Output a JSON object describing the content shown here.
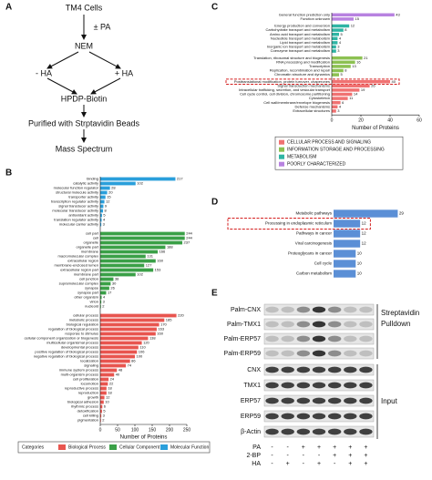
{
  "panel_labels": [
    "A",
    "B",
    "C",
    "D",
    "E"
  ],
  "flowchart": {
    "start": "TM4 Cells",
    "treatment": "± PA",
    "step1": "NEM",
    "left": "- HA",
    "right": "+ HA",
    "step2": "HPDP-Biotin",
    "step3": "Purified with Strptavidin Beads",
    "end": "Mass  Spectrum"
  },
  "chart_data": [
    {
      "type": "bar",
      "orientation": "horizontal",
      "xlabel": "Number of Proteins",
      "xlim": [
        0,
        60
      ],
      "xticks": [
        0,
        20,
        40,
        60
      ],
      "legend": "bottom-right",
      "series": [
        {
          "name": "CELLULAR PROCESS AND SIGNALING",
          "color": "#f07272",
          "highlight": [
            0
          ],
          "categories": [
            "Posttranslational modification, protein turnover, chaperones",
            "Signal transduction mechanisms",
            "Intracellular trafficking, secretion, and vesicular transport",
            "Cell cycle control, cell division, chromosome partitioning",
            "Cytoskeleton",
            "Cell wall/membrane/envelope biogenesis",
            "Defense mechanisms",
            "Extracellular structures"
          ],
          "values": [
            40,
            26,
            19,
            14,
            11,
            6,
            4,
            3
          ]
        },
        {
          "name": "INFORMATION STORAGE AND PROCESSING",
          "color": "#8cc152",
          "categories": [
            "Translation, ribosomal structure and biogenesis",
            "RNA processing and modification",
            "Transcription",
            "Replication, recombination and repair",
            "Chromatin structure and dynamics"
          ],
          "values": [
            21,
            16,
            13,
            8,
            5
          ]
        },
        {
          "name": "METABOLISM",
          "color": "#2fb5a4",
          "categories": [
            "Energy production and conversion",
            "Carbohydrate transport and metabolism",
            "Amino acid transport and metabolism",
            "Nucleotide transport and metabolism",
            "Lipid transport and metabolism",
            "Inorganic ion transport and metabolism",
            "Coenzyme transport and metabolism"
          ],
          "values": [
            12,
            8,
            5,
            4,
            4,
            3,
            3
          ]
        },
        {
          "name": "POORLY CHARACTERIZED",
          "color": "#b882e0",
          "categories": [
            "General function prediction only",
            "Function unknown"
          ],
          "values": [
            43,
            15
          ]
        }
      ]
    },
    {
      "type": "bar",
      "orientation": "horizontal",
      "xlabel": "Number of Proteins",
      "xlim": [
        0,
        250
      ],
      "xticks": [
        0,
        50,
        100,
        150,
        200,
        250
      ],
      "legend": "bottom",
      "legend_title": "Categories",
      "series": [
        {
          "name": "Biological Process",
          "color": "#e8554f",
          "categories": [
            "cellular process",
            "metabolic process",
            "biological regulation",
            "regulation of biological process",
            "response to stimulus",
            "cellular component organization or biogenesis",
            "multicellular organismal process",
            "developmental process",
            "positive regulation of biological process",
            "negative regulation of biological process",
            "localization",
            "signaling",
            "immune system process",
            "multi-organism process",
            "cell proliferation",
            "locomotion",
            "reproductive process",
            "reproduction",
            "growth",
            "biological adhesion",
            "rhythmic process",
            "detoxification",
            "cell killing",
            "pigmentation"
          ],
          "values": [
            220,
            185,
            170,
            163,
            160,
            138,
            120,
            110,
            106,
            100,
            86,
            74,
            48,
            40,
            24,
            22,
            18,
            18,
            12,
            10,
            6,
            5,
            3,
            2
          ]
        },
        {
          "name": "Cellular Component",
          "color": "#3aa047",
          "categories": [
            "cell part",
            "cell",
            "organelle",
            "organelle part",
            "membrane",
            "macromolecular complex",
            "extracellular region",
            "membrane-enclosed lumen",
            "extracellular region part",
            "membrane part",
            "cell junction",
            "supramolecular complex",
            "synapse",
            "synapse part",
            "other organism",
            "virion",
            "nucleoid"
          ],
          "values": [
            244,
            244,
            237,
            188,
            166,
            131,
            160,
            127,
            153,
            102,
            38,
            30,
            26,
            17,
            4,
            3,
            2
          ]
        },
        {
          "name": "Molecular Function",
          "color": "#2a9fdb",
          "categories": [
            "binding",
            "catalytic activity",
            "molecular function regulator",
            "structural molecule activity",
            "transporter activity",
            "transcription regulator activity",
            "signal transducer activity",
            "molecular transducer activity",
            "antioxidant activity",
            "translation regulator activity",
            "molecular carrier activity"
          ],
          "values": [
            217,
            102,
            28,
            20,
            15,
            12,
            9,
            8,
            5,
            4,
            3
          ]
        }
      ]
    },
    {
      "type": "bar",
      "orientation": "horizontal",
      "xlim": [
        0,
        35
      ],
      "color": "#5b8fd6",
      "highlight": [
        1
      ],
      "categories": [
        "Metabolic pathways",
        "Processing in endoplasmic reticulum",
        "Pathways in cancer",
        "Viral carcinogenesis",
        "Proteoglycans in cancer",
        "Cell cycle",
        "Carbon metabolism"
      ],
      "values": [
        29,
        12,
        12,
        12,
        10,
        10,
        10
      ]
    }
  ],
  "blot": {
    "pulldown_rows": [
      "Palm-CNX",
      "Palm-TMX1",
      "Palm-ERP57",
      "Palm-ERP59"
    ],
    "pulldown_label": [
      "Streptavidin",
      "Pulldown"
    ],
    "input_rows": [
      "CNX",
      "TMX1",
      "ERP57",
      "ERP59",
      "β-Actin"
    ],
    "input_label": "Input",
    "conditions": [
      {
        "name": "PA",
        "lanes": [
          "-",
          "-",
          "+",
          "+",
          "+",
          "+",
          "+"
        ]
      },
      {
        "name": "2-BP",
        "lanes": [
          "-",
          "-",
          "-",
          "-",
          "+",
          "+",
          "+"
        ]
      },
      {
        "name": "HA",
        "lanes": [
          "-",
          "+",
          "-",
          "+",
          "-",
          "+",
          "+"
        ]
      }
    ]
  }
}
